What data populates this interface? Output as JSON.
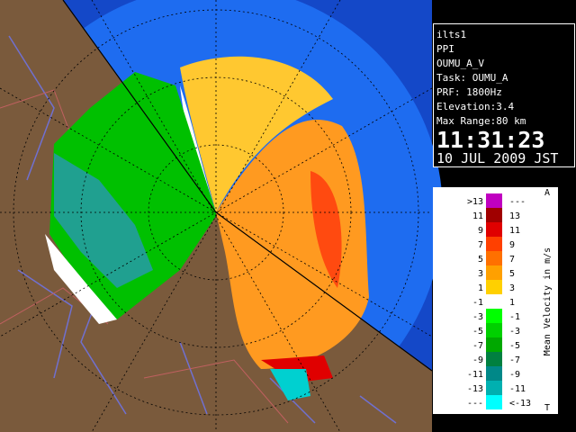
{
  "info": {
    "site": "ilts1",
    "mode": "PPI",
    "product": "OUMU_A_V",
    "task": "Task: OUMU_A",
    "prf": "PRF: 1800Hz",
    "elevation": "Elevation:3.4",
    "max_range": "Max Range:80 km",
    "time": "11:31:23",
    "date": "10 JUL 2009 JST"
  },
  "legend": {
    "title": "Mean Velocity in m/s",
    "top_mark": "A",
    "bottom_mark": "T",
    "rows": [
      {
        "left": ">13",
        "right": "---",
        "color": "#c000c0"
      },
      {
        "left": "11",
        "right": "13",
        "color": "#a00000"
      },
      {
        "left": "9",
        "right": "11",
        "color": "#e00000"
      },
      {
        "left": "7",
        "right": "9",
        "color": "#ff4000"
      },
      {
        "left": "5",
        "right": "7",
        "color": "#ff7000"
      },
      {
        "left": "3",
        "right": "5",
        "color": "#ffa000"
      },
      {
        "left": "1",
        "right": "3",
        "color": "#ffd000"
      },
      {
        "left": "-1",
        "right": "1",
        "color": "#ffffff"
      },
      {
        "left": "-3",
        "right": "-1",
        "color": "#00ff00"
      },
      {
        "left": "-5",
        "right": "-3",
        "color": "#00d000"
      },
      {
        "left": "-7",
        "right": "-5",
        "color": "#00a800"
      },
      {
        "left": "-9",
        "right": "-7",
        "color": "#008040"
      },
      {
        "left": "-11",
        "right": "-9",
        "color": "#008888"
      },
      {
        "left": "-13",
        "right": "-11",
        "color": "#00b0b0"
      },
      {
        "left": "---",
        "right": "<-13",
        "color": "#00ffff"
      }
    ]
  }
}
